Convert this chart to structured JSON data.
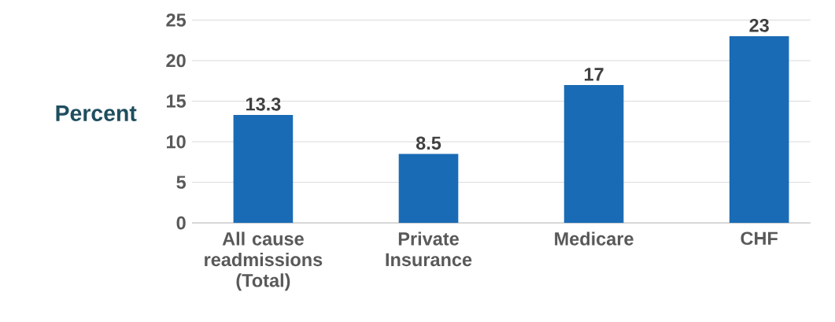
{
  "chart_data": {
    "type": "bar",
    "ylabel": "Percent",
    "categories": [
      "All cause readmissions (Total)",
      "Private Insurance",
      "Medicare",
      "CHF"
    ],
    "values": [
      13.3,
      8.5,
      17,
      23
    ],
    "color": "#1a6bb5",
    "ylim": [
      0,
      25
    ],
    "yticks": [
      0,
      5,
      10,
      15,
      20,
      25
    ],
    "grid": "y",
    "data_labels": true
  }
}
